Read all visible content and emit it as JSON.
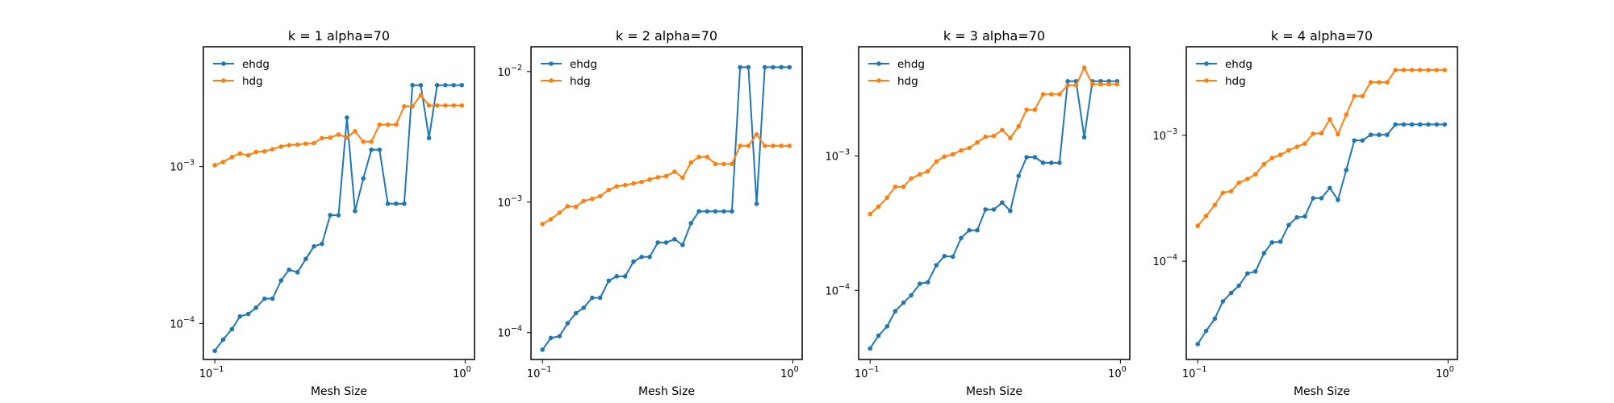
{
  "colors": {
    "ehdg": "#1f77b4",
    "hdg": "#ff7f0e",
    "axes": "#000000"
  },
  "chart_data": [
    {
      "type": "line",
      "title": "k = 1 alpha=70",
      "xlabel": "Mesh Size",
      "xscale": "log",
      "yscale": "log",
      "xlim": [
        0.09,
        1.09
      ],
      "ylim": [
        5.9e-05,
        0.0058
      ],
      "xticks": [
        {
          "value": 0.1,
          "label": "10",
          "exp": "−1"
        },
        {
          "value": 1,
          "label": "10",
          "exp": "0"
        }
      ],
      "yticks": [
        {
          "value": 0.0001,
          "label": "10",
          "exp": "−4"
        },
        {
          "value": 0.001,
          "label": "10",
          "exp": "−3"
        }
      ],
      "legend": "top-left",
      "x": [
        0.1,
        0.108,
        0.117,
        0.126,
        0.136,
        0.146,
        0.158,
        0.17,
        0.184,
        0.198,
        0.214,
        0.231,
        0.249,
        0.268,
        0.289,
        0.312,
        0.337,
        0.363,
        0.392,
        0.422,
        0.455,
        0.491,
        0.53,
        0.571,
        0.616,
        0.665,
        0.717,
        0.773,
        0.834,
        0.9,
        0.97
      ],
      "series": [
        {
          "name": "ehdg",
          "values": [
            6.7e-05,
            7.9e-05,
            9.2e-05,
            0.000111,
            0.000115,
            0.000126,
            0.000144,
            0.000144,
            0.000188,
            0.00022,
            0.000212,
            0.000258,
            0.00031,
            0.000322,
            0.00049,
            0.00049,
            0.00205,
            0.00052,
            0.00084,
            0.00128,
            0.00128,
            0.00058,
            0.00058,
            0.00058,
            0.0033,
            0.0033,
            0.00152,
            0.0033,
            0.0033,
            0.0033,
            0.0033
          ]
        },
        {
          "name": "hdg",
          "values": [
            0.00102,
            0.00107,
            0.00115,
            0.00121,
            0.00118,
            0.00124,
            0.00125,
            0.00129,
            0.00134,
            0.00137,
            0.00138,
            0.0014,
            0.00141,
            0.00152,
            0.00153,
            0.0016,
            0.00153,
            0.00168,
            0.00144,
            0.00144,
            0.00185,
            0.00185,
            0.00185,
            0.00242,
            0.00242,
            0.00285,
            0.00245,
            0.00245,
            0.00245,
            0.00245,
            0.00245
          ]
        }
      ]
    },
    {
      "type": "line",
      "title": "k = 2 alpha=70",
      "xlabel": "Mesh Size",
      "xscale": "log",
      "yscale": "log",
      "xlim": [
        0.09,
        1.09
      ],
      "ylim": [
        6.23e-05,
        0.0155
      ],
      "xticks": [
        {
          "value": 0.1,
          "label": "10",
          "exp": "−1"
        },
        {
          "value": 1,
          "label": "10",
          "exp": "0"
        }
      ],
      "yticks": [
        {
          "value": 0.0001,
          "label": "10",
          "exp": "−4"
        },
        {
          "value": 0.001,
          "label": "10",
          "exp": "−3"
        },
        {
          "value": 0.01,
          "label": "10",
          "exp": "−2"
        }
      ],
      "legend": "top-left",
      "x": [
        0.1,
        0.108,
        0.117,
        0.126,
        0.136,
        0.146,
        0.158,
        0.17,
        0.184,
        0.198,
        0.214,
        0.231,
        0.249,
        0.268,
        0.289,
        0.312,
        0.337,
        0.363,
        0.392,
        0.422,
        0.455,
        0.491,
        0.53,
        0.571,
        0.616,
        0.665,
        0.717,
        0.773,
        0.834,
        0.9,
        0.97
      ],
      "series": [
        {
          "name": "ehdg",
          "values": [
            7.4e-05,
            9.1e-05,
            9.4e-05,
            0.000118,
            0.000141,
            0.000155,
            0.000185,
            0.000185,
            0.00025,
            0.00027,
            0.00027,
            0.00035,
            0.00038,
            0.00038,
            0.00049,
            0.00049,
            0.00052,
            0.00047,
            0.00069,
            0.00085,
            0.00085,
            0.00085,
            0.00085,
            0.00085,
            0.0108,
            0.0108,
            0.00097,
            0.0108,
            0.0108,
            0.0108,
            0.0108
          ]
        },
        {
          "name": "hdg",
          "values": [
            0.00068,
            0.00074,
            0.00083,
            0.00093,
            0.00092,
            0.00102,
            0.00106,
            0.00111,
            0.00124,
            0.00132,
            0.00135,
            0.00139,
            0.00143,
            0.00149,
            0.00155,
            0.00158,
            0.00171,
            0.00154,
            0.00201,
            0.00222,
            0.00222,
            0.00196,
            0.00196,
            0.00196,
            0.0027,
            0.0027,
            0.0033,
            0.0027,
            0.0027,
            0.0027,
            0.0027
          ]
        }
      ]
    },
    {
      "type": "line",
      "title": "k = 3 alpha=70",
      "xlabel": "Mesh Size",
      "xscale": "log",
      "yscale": "log",
      "xlim": [
        0.09,
        1.09
      ],
      "ylim": [
        3.06e-05,
        0.0065
      ],
      "xticks": [
        {
          "value": 0.1,
          "label": "10",
          "exp": "−1"
        },
        {
          "value": 1,
          "label": "10",
          "exp": "0"
        }
      ],
      "yticks": [
        {
          "value": 0.0001,
          "label": "10",
          "exp": "−4"
        },
        {
          "value": 0.001,
          "label": "10",
          "exp": "−3"
        }
      ],
      "legend": "top-left",
      "x": [
        0.1,
        0.108,
        0.117,
        0.126,
        0.136,
        0.146,
        0.158,
        0.17,
        0.184,
        0.198,
        0.214,
        0.231,
        0.249,
        0.268,
        0.289,
        0.312,
        0.337,
        0.363,
        0.392,
        0.422,
        0.455,
        0.491,
        0.53,
        0.571,
        0.616,
        0.665,
        0.717,
        0.773,
        0.834,
        0.9,
        0.97
      ],
      "series": [
        {
          "name": "ehdg",
          "values": [
            3.7e-05,
            4.6e-05,
            5.4e-05,
            7e-05,
            8.1e-05,
            9.2e-05,
            0.000112,
            0.000115,
            0.000154,
            0.00018,
            0.000178,
            0.000245,
            0.00028,
            0.00028,
            0.0004,
            0.0004,
            0.00045,
            0.00039,
            0.00071,
            0.00098,
            0.00098,
            0.00089,
            0.00089,
            0.00089,
            0.0036,
            0.0036,
            0.00138,
            0.0036,
            0.0036,
            0.0036,
            0.0036
          ]
        },
        {
          "name": "hdg",
          "values": [
            0.00037,
            0.00042,
            0.00049,
            0.00059,
            0.00059,
            0.00068,
            0.00073,
            0.00077,
            0.00091,
            0.00099,
            0.00103,
            0.0011,
            0.00115,
            0.00126,
            0.00139,
            0.00141,
            0.00156,
            0.00136,
            0.00166,
            0.00221,
            0.00221,
            0.00288,
            0.00288,
            0.00288,
            0.00336,
            0.00336,
            0.00454,
            0.00342,
            0.00342,
            0.00342,
            0.00342
          ]
        }
      ]
    },
    {
      "type": "line",
      "title": "k = 4 alpha=70",
      "xlabel": "Mesh Size",
      "xscale": "log",
      "yscale": "log",
      "xlim": [
        0.09,
        1.09
      ],
      "ylim": [
        1.66e-05,
        0.00505
      ],
      "xticks": [
        {
          "value": 0.1,
          "label": "10",
          "exp": "−1"
        },
        {
          "value": 1,
          "label": "10",
          "exp": "0"
        }
      ],
      "yticks": [
        {
          "value": 0.0001,
          "label": "10",
          "exp": "−4"
        },
        {
          "value": 0.001,
          "label": "10",
          "exp": "−3"
        }
      ],
      "legend": "top-left",
      "x": [
        0.1,
        0.108,
        0.117,
        0.126,
        0.136,
        0.146,
        0.158,
        0.17,
        0.184,
        0.198,
        0.214,
        0.231,
        0.249,
        0.268,
        0.289,
        0.312,
        0.337,
        0.363,
        0.392,
        0.422,
        0.455,
        0.491,
        0.53,
        0.571,
        0.616,
        0.665,
        0.717,
        0.773,
        0.834,
        0.9,
        0.97
      ],
      "series": [
        {
          "name": "ehdg",
          "values": [
            2.2e-05,
            2.8e-05,
            3.5e-05,
            4.8e-05,
            5.6e-05,
            6.4e-05,
            8e-05,
            8.3e-05,
            0.000116,
            0.000141,
            0.000143,
            0.000194,
            0.000223,
            0.000227,
            0.000317,
            0.000317,
            0.000382,
            0.000307,
            0.00053,
            0.00091,
            0.00091,
            0.00101,
            0.00101,
            0.00101,
            0.00122,
            0.00122,
            0.00122,
            0.00122,
            0.00122,
            0.00122,
            0.00122
          ]
        },
        {
          "name": "hdg",
          "values": [
            0.000191,
            0.000229,
            0.00028,
            0.00035,
            0.00036,
            0.00042,
            0.00045,
            0.00049,
            0.00059,
            0.00066,
            0.0007,
            0.00076,
            0.00081,
            0.00086,
            0.00103,
            0.00104,
            0.00134,
            0.00102,
            0.00146,
            0.00205,
            0.00205,
            0.00264,
            0.00264,
            0.00264,
            0.0033,
            0.0033,
            0.0033,
            0.0033,
            0.0033,
            0.0033,
            0.0033
          ]
        }
      ]
    }
  ]
}
